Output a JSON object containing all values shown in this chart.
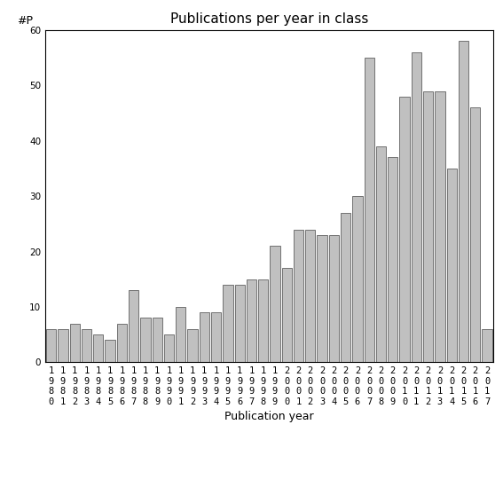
{
  "title": "Publications per year in class",
  "xlabel": "Publication year",
  "ylabel": "#P",
  "ylim": [
    0,
    60
  ],
  "yticks": [
    0,
    10,
    20,
    30,
    40,
    50,
    60
  ],
  "years": [
    "1980",
    "1981",
    "1982",
    "1983",
    "1984",
    "1985",
    "1986",
    "1987",
    "1988",
    "1989",
    "1990",
    "1991",
    "1992",
    "1993",
    "1994",
    "1995",
    "1996",
    "1997",
    "1998",
    "1999",
    "2000",
    "2001",
    "2002",
    "2003",
    "2004",
    "2005",
    "2006",
    "2007",
    "2008",
    "2009",
    "2010",
    "2011",
    "2012",
    "2013",
    "2014",
    "2015",
    "2016",
    "2017"
  ],
  "values": [
    6,
    6,
    7,
    6,
    5,
    4,
    7,
    13,
    8,
    8,
    5,
    10,
    6,
    9,
    9,
    14,
    14,
    15,
    15,
    21,
    17,
    24,
    24,
    23,
    23,
    27,
    30,
    55,
    39,
    37,
    48,
    56,
    49,
    49,
    35,
    58,
    46,
    6
  ],
  "bar_color": "#c0c0c0",
  "bar_edgecolor": "#606060",
  "background_color": "#ffffff",
  "title_fontsize": 11,
  "label_fontsize": 9,
  "tick_fontsize": 7.5
}
